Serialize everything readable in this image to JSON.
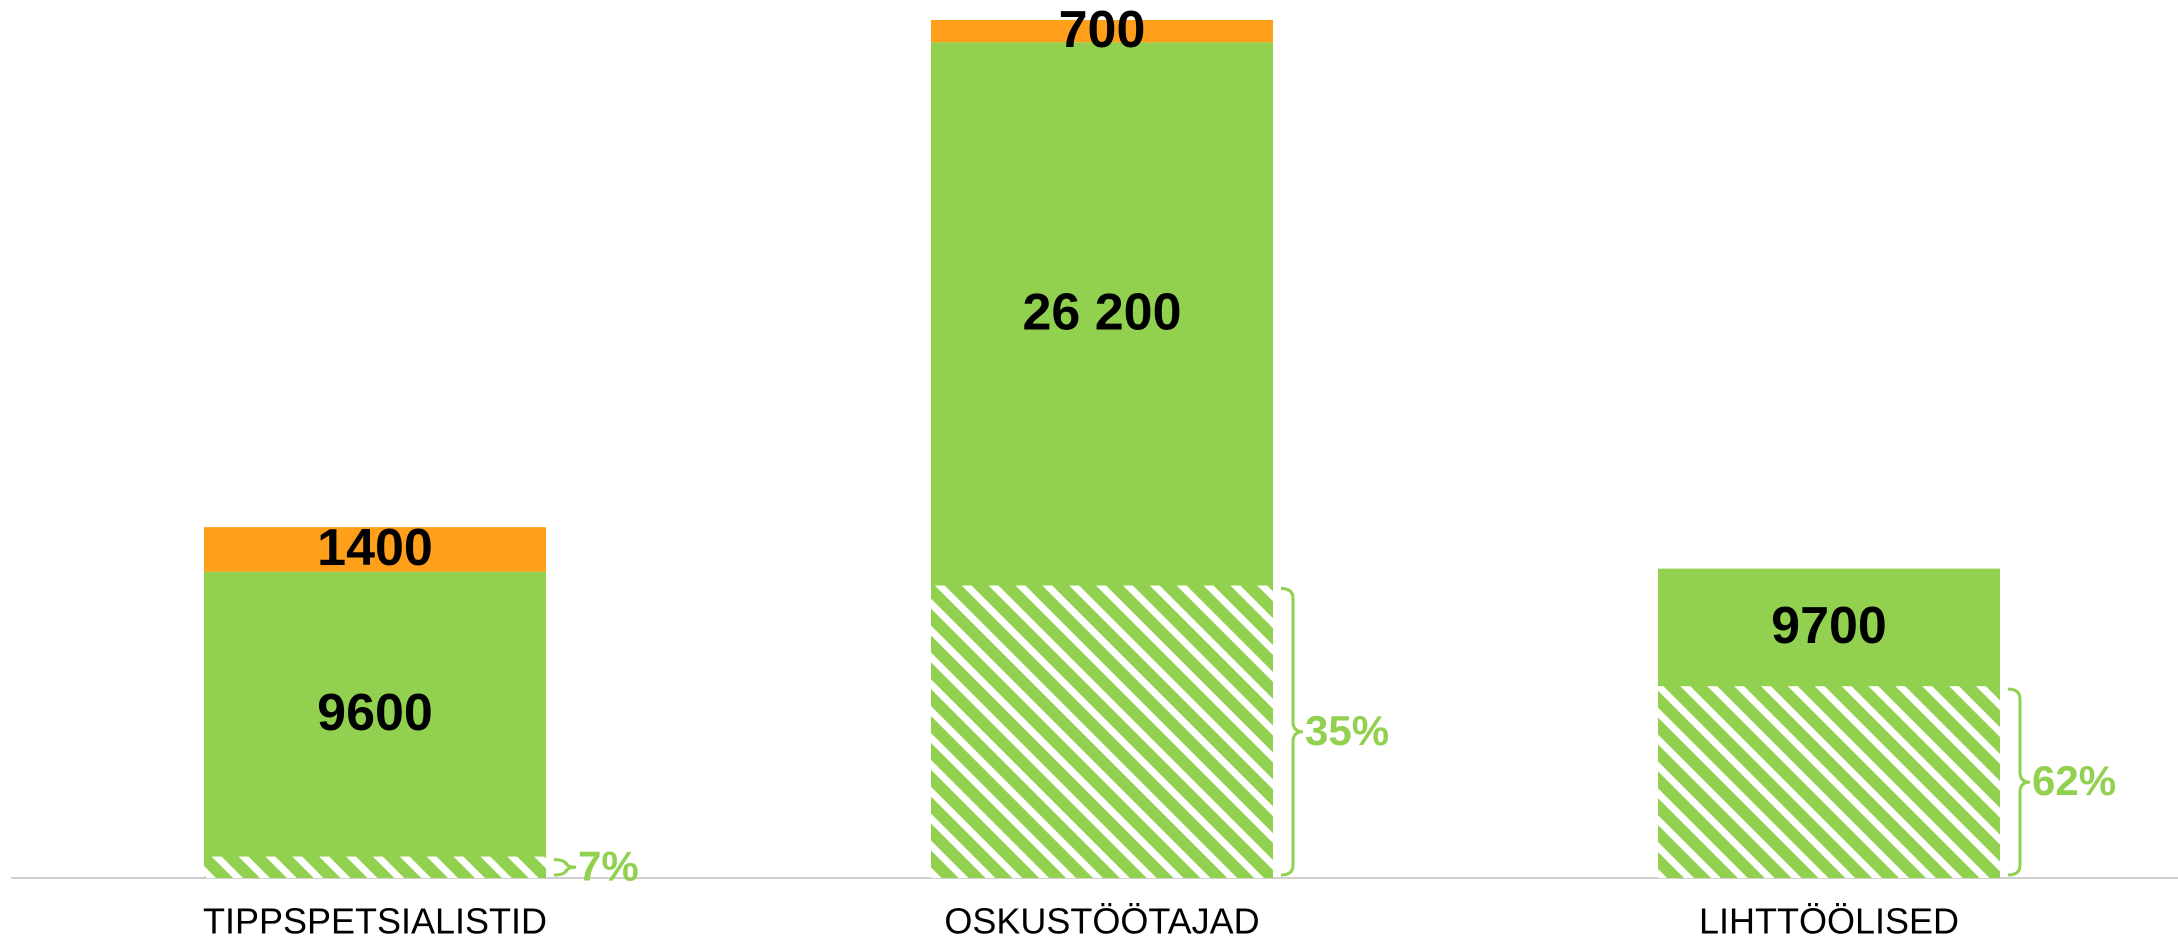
{
  "chart_data": {
    "type": "bar",
    "categories": [
      "TIPPSPETSIALISTID",
      "OSKUSTÖÖTAJAD",
      "LIHTTÖÖLISED"
    ],
    "series": [
      {
        "color": "#92d050",
        "values": [
          9600,
          26200,
          9700
        ],
        "value_labels": [
          "9600",
          "26 200",
          "9700"
        ]
      },
      {
        "color": "#ff9f1a",
        "values": [
          1400,
          700,
          null
        ]
      }
    ],
    "share": {
      "color": "#92d050",
      "values": [
        7,
        35,
        62
      ],
      "value_labels": [
        "7%",
        "35%",
        "62%"
      ]
    }
  }
}
